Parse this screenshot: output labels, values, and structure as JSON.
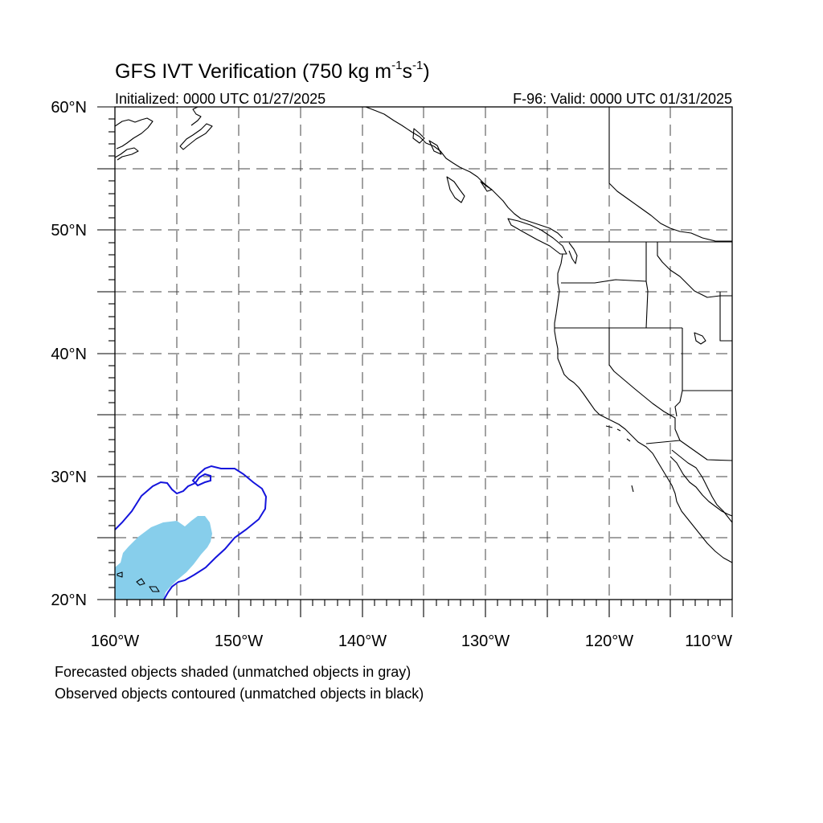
{
  "title": {
    "main": "GFS IVT Verification (750 kg m",
    "sup1": "-1",
    "mid": "s",
    "sup2": "-1",
    "end": ")"
  },
  "initialized": "Initialized: 0000 UTC 01/27/2025",
  "valid": "F-96: Valid: 0000 UTC 01/31/2025",
  "map": {
    "lon_range": [
      -160,
      -110
    ],
    "lat_range": [
      20,
      60
    ],
    "grid_style": "dashed",
    "gridlines_lon": [
      -155,
      -150,
      -145,
      -140,
      -135,
      -130,
      -125,
      -120,
      -115
    ],
    "gridlines_lat": [
      25,
      30,
      35,
      40,
      45,
      50,
      55
    ],
    "lat_labels": [
      "20°N",
      "30°N",
      "40°N",
      "50°N",
      "60°N"
    ],
    "lon_labels": [
      "160°W",
      "150°W",
      "140°W",
      "130°W",
      "120°W",
      "110°W"
    ],
    "forecast_object_color": "#87ceeb",
    "observed_contour_color": "#1414dc",
    "coastline_color": "#000000"
  },
  "legend": {
    "line1": "Forecasted objects shaded (unmatched objects in gray)",
    "line2": "Observed objects contoured (unmatched objects in black)"
  }
}
